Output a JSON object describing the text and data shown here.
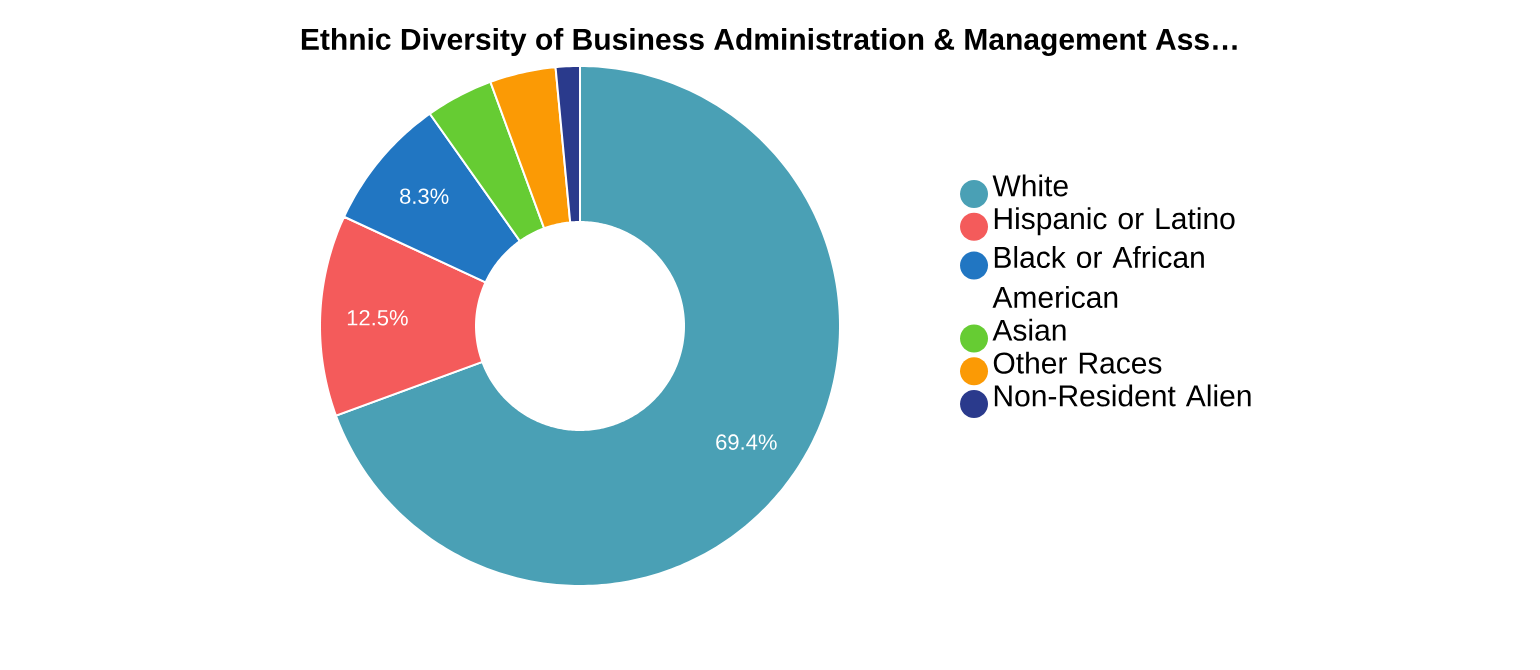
{
  "chart_data": {
    "type": "donut",
    "title": "Ethnic Diversity of Business Administration & Management Ass…",
    "categories": [
      "White",
      "Hispanic or Latino",
      "Black or African American",
      "Asian",
      "Other Races",
      "Non-Resident Alien"
    ],
    "values": [
      69.4,
      12.5,
      8.3,
      4.2,
      4.1,
      1.5
    ],
    "colors": [
      "#4aa0b5",
      "#f45b5b",
      "#2176c2",
      "#66cc33",
      "#fb9a05",
      "#2a3a8c"
    ],
    "value_labels": [
      "69.4%",
      "12.5%",
      "8.3%",
      null,
      null,
      null
    ],
    "legend": "right"
  }
}
